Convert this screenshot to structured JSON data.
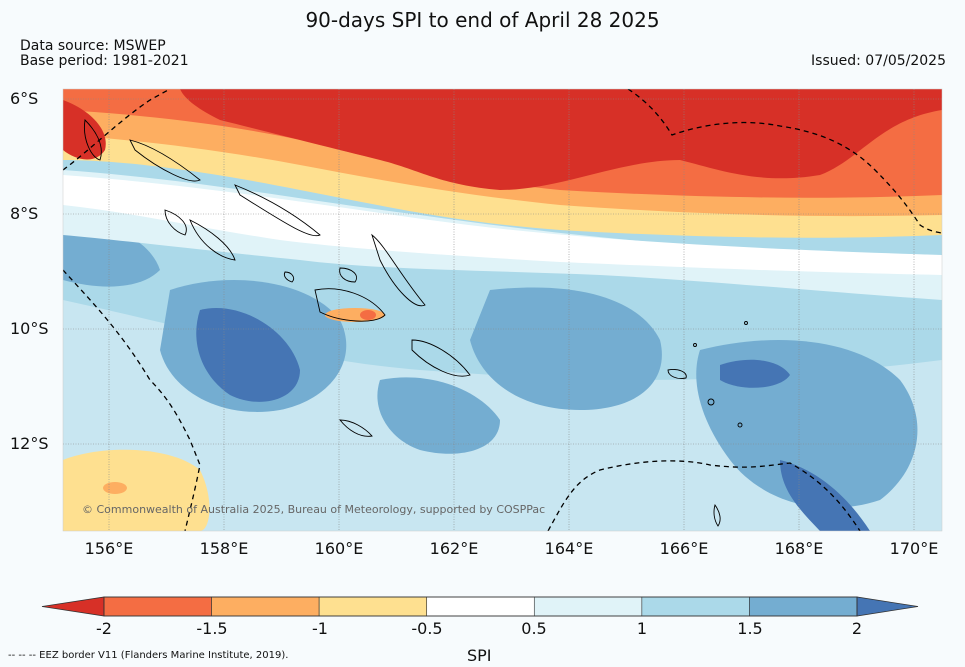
{
  "title": "90-days SPI to end of April 28 2025",
  "data_source": "Data source: MSWEP",
  "base_period": "Base period: 1981-2021",
  "issued": "Issued: 07/05/2025",
  "lat_labels": [
    "6°S",
    "8°S",
    "10°S",
    "12°S"
  ],
  "lon_labels": [
    "156°E",
    "158°E",
    "160°E",
    "162°E",
    "164°E",
    "166°E",
    "168°E",
    "170°E"
  ],
  "credit": "© Commonwealth of Australia 2025, Bureau of Meteorology, supported by COSPPac",
  "colorbar": {
    "ticks": [
      "-2",
      "-1.5",
      "-1",
      "-0.5",
      "0.5",
      "1",
      "1.5",
      "2"
    ],
    "label": "SPI",
    "colors": [
      "#d73027",
      "#f46d43",
      "#fdae61",
      "#fee090",
      "#ffffff",
      "#e0f3f8",
      "#abd9e9",
      "#74add1",
      "#4575b4"
    ]
  },
  "eez_note": "--  --  -- EEZ border V11 (Flanders Marine Institute, 2019)."
}
